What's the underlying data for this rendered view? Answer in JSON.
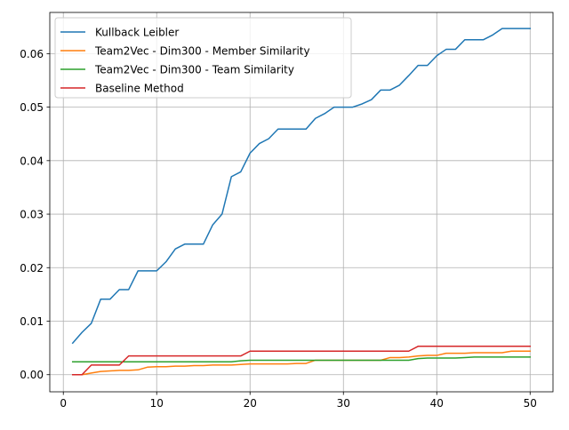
{
  "chart_data": {
    "type": "line",
    "title": "",
    "xlabel": "",
    "ylabel": "",
    "xlim": [
      -1.45,
      52.45
    ],
    "ylim": [
      -0.0032,
      0.0677
    ],
    "xticks": [
      0,
      10,
      20,
      30,
      40,
      50
    ],
    "yticks": [
      0.0,
      0.01,
      0.02,
      0.03,
      0.04,
      0.05,
      0.06
    ],
    "ytick_labels": [
      "0.00",
      "0.01",
      "0.02",
      "0.03",
      "0.04",
      "0.05",
      "0.06"
    ],
    "grid": true,
    "legend_position": "top-left",
    "x": [
      1,
      2,
      3,
      4,
      5,
      6,
      7,
      8,
      9,
      10,
      11,
      12,
      13,
      14,
      15,
      16,
      17,
      18,
      19,
      20,
      21,
      22,
      23,
      24,
      25,
      26,
      27,
      28,
      29,
      30,
      31,
      32,
      33,
      34,
      35,
      36,
      37,
      38,
      39,
      40,
      41,
      42,
      43,
      44,
      45,
      46,
      47,
      48,
      49,
      50
    ],
    "series": [
      {
        "name": "Kullback Leibler",
        "color": "#1f77b4",
        "values": [
          0.0059,
          0.0079,
          0.0096,
          0.0141,
          0.0141,
          0.0159,
          0.0159,
          0.0194,
          0.0194,
          0.0194,
          0.0211,
          0.0235,
          0.0244,
          0.0244,
          0.0244,
          0.028,
          0.03,
          0.037,
          0.0379,
          0.0414,
          0.0432,
          0.0441,
          0.0459,
          0.0459,
          0.0459,
          0.0459,
          0.0479,
          0.0488,
          0.05,
          0.05,
          0.05,
          0.0506,
          0.0514,
          0.0532,
          0.0532,
          0.0541,
          0.0559,
          0.0578,
          0.0578,
          0.0596,
          0.0608,
          0.0608,
          0.0626,
          0.0626,
          0.0626,
          0.0635,
          0.0647,
          0.0647,
          0.0647,
          0.0647
        ]
      },
      {
        "name": "Team2Vec - Dim300 - Member Similarity",
        "color": "#ff7f0e",
        "values": [
          0.0,
          0.0,
          0.0003,
          0.0006,
          0.0007,
          0.0008,
          0.0008,
          0.0009,
          0.0014,
          0.0015,
          0.0015,
          0.0016,
          0.0016,
          0.0017,
          0.0017,
          0.0018,
          0.0018,
          0.0018,
          0.0019,
          0.002,
          0.002,
          0.002,
          0.002,
          0.002,
          0.0021,
          0.0021,
          0.0027,
          0.0027,
          0.0027,
          0.0027,
          0.0027,
          0.0027,
          0.0027,
          0.0027,
          0.0032,
          0.0032,
          0.0033,
          0.0035,
          0.0036,
          0.0036,
          0.004,
          0.004,
          0.004,
          0.0041,
          0.0041,
          0.0041,
          0.0041,
          0.0044,
          0.0044,
          0.0044
        ]
      },
      {
        "name": "Team2Vec - Dim300 - Team Similarity",
        "color": "#2ca02c",
        "values": [
          0.0024,
          0.0024,
          0.0024,
          0.0024,
          0.0024,
          0.0024,
          0.0024,
          0.0024,
          0.0024,
          0.0024,
          0.0024,
          0.0024,
          0.0024,
          0.0024,
          0.0024,
          0.0024,
          0.0024,
          0.0024,
          0.0026,
          0.0027,
          0.0027,
          0.0027,
          0.0027,
          0.0027,
          0.0027,
          0.0027,
          0.0027,
          0.0027,
          0.0027,
          0.0027,
          0.0027,
          0.0027,
          0.0027,
          0.0027,
          0.0027,
          0.0027,
          0.0027,
          0.003,
          0.0031,
          0.0031,
          0.0031,
          0.0031,
          0.0032,
          0.0033,
          0.0033,
          0.0033,
          0.0033,
          0.0033,
          0.0033,
          0.0033
        ]
      },
      {
        "name": "Baseline Method",
        "color": "#d62728",
        "values": [
          0.0,
          0.0,
          0.0018,
          0.0018,
          0.0018,
          0.0018,
          0.0035,
          0.0035,
          0.0035,
          0.0035,
          0.0035,
          0.0035,
          0.0035,
          0.0035,
          0.0035,
          0.0035,
          0.0035,
          0.0035,
          0.0035,
          0.0044,
          0.0044,
          0.0044,
          0.0044,
          0.0044,
          0.0044,
          0.0044,
          0.0044,
          0.0044,
          0.0044,
          0.0044,
          0.0044,
          0.0044,
          0.0044,
          0.0044,
          0.0044,
          0.0044,
          0.0044,
          0.0053,
          0.0053,
          0.0053,
          0.0053,
          0.0053,
          0.0053,
          0.0053,
          0.0053,
          0.0053,
          0.0053,
          0.0053,
          0.0053,
          0.0053
        ]
      }
    ]
  }
}
